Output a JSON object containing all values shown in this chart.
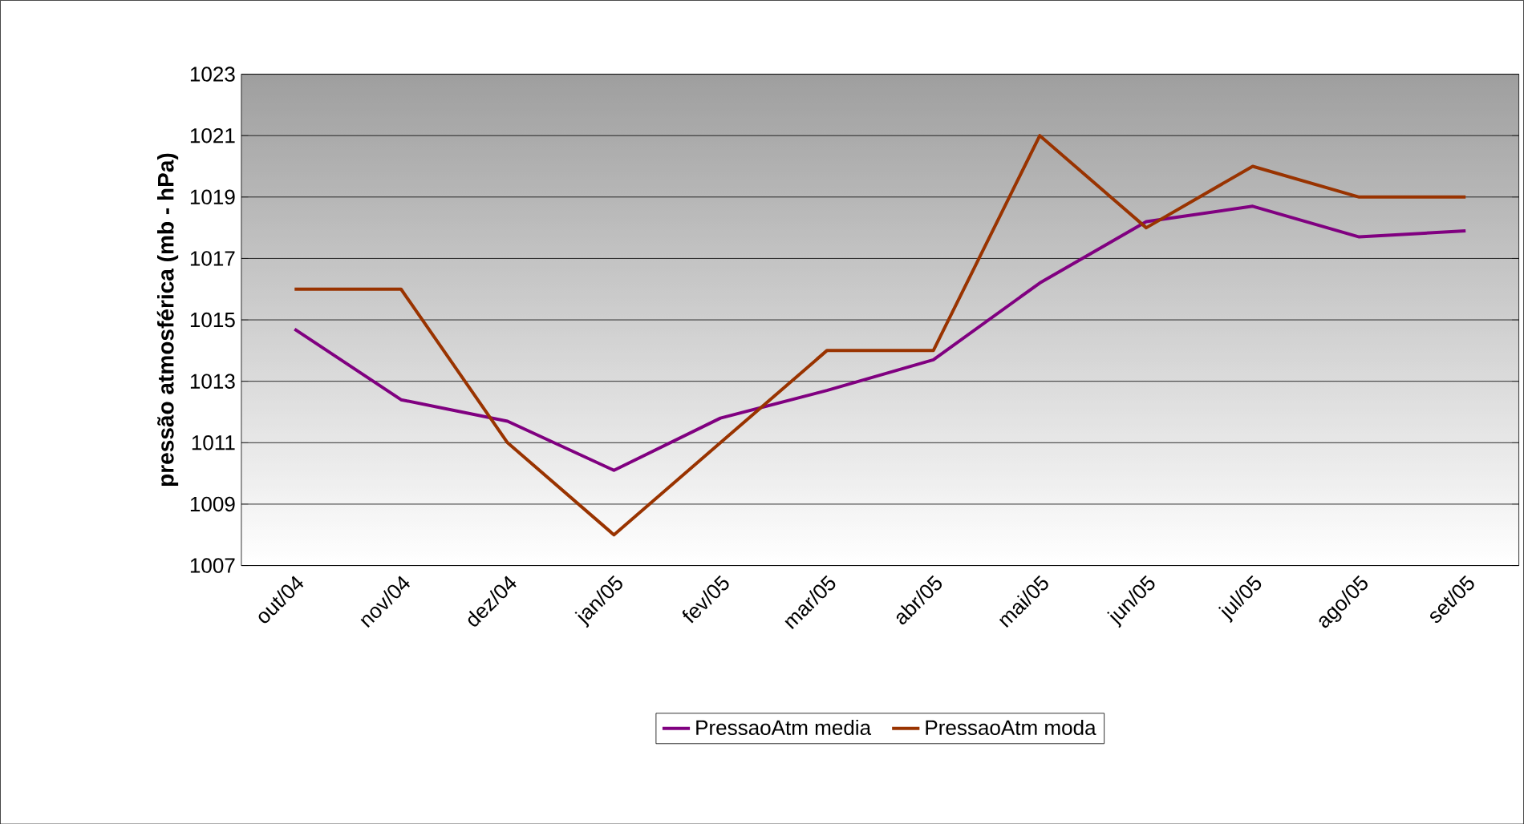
{
  "chart_data": {
    "type": "line",
    "ylabel": "pressão atmosférica (mb - hPa)",
    "categories": [
      "out/04",
      "nov/04",
      "dez/04",
      "jan/05",
      "fev/05",
      "mar/05",
      "abr/05",
      "mai/05",
      "jun/05",
      "jul/05",
      "ago/05",
      "set/05"
    ],
    "series": [
      {
        "name": "PressaoAtm media",
        "color": "#800080",
        "values": [
          1014.7,
          1012.4,
          1011.7,
          1010.1,
          1011.8,
          1012.7,
          1013.7,
          1016.2,
          1018.2,
          1018.7,
          1017.7,
          1017.9
        ]
      },
      {
        "name": "PressaoAtm moda",
        "color": "#993300",
        "values": [
          1016,
          1016,
          1011,
          1008,
          1011,
          1014,
          1014,
          1021,
          1018,
          1020,
          1019,
          1019
        ]
      }
    ],
    "ylim": [
      1007,
      1023
    ],
    "yticks": [
      1007,
      1009,
      1011,
      1013,
      1015,
      1017,
      1019,
      1021,
      1023
    ],
    "grid": "y",
    "legend": "bottom",
    "marker": "none",
    "line_style": "solid"
  }
}
